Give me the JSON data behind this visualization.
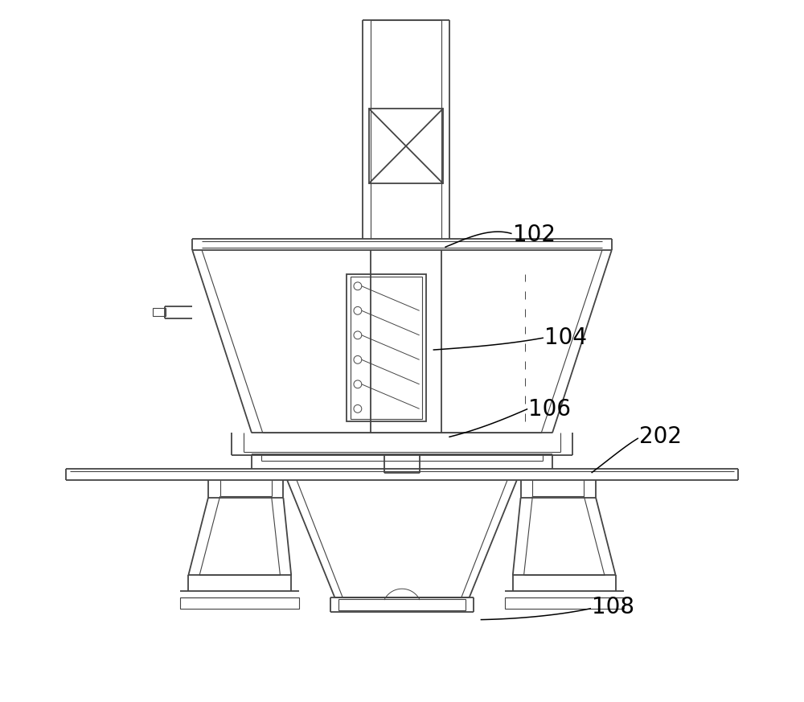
{
  "bg_color": "#ffffff",
  "line_color": "#444444",
  "lw": 1.3,
  "lw_thin": 0.8,
  "label_fontsize": 20
}
